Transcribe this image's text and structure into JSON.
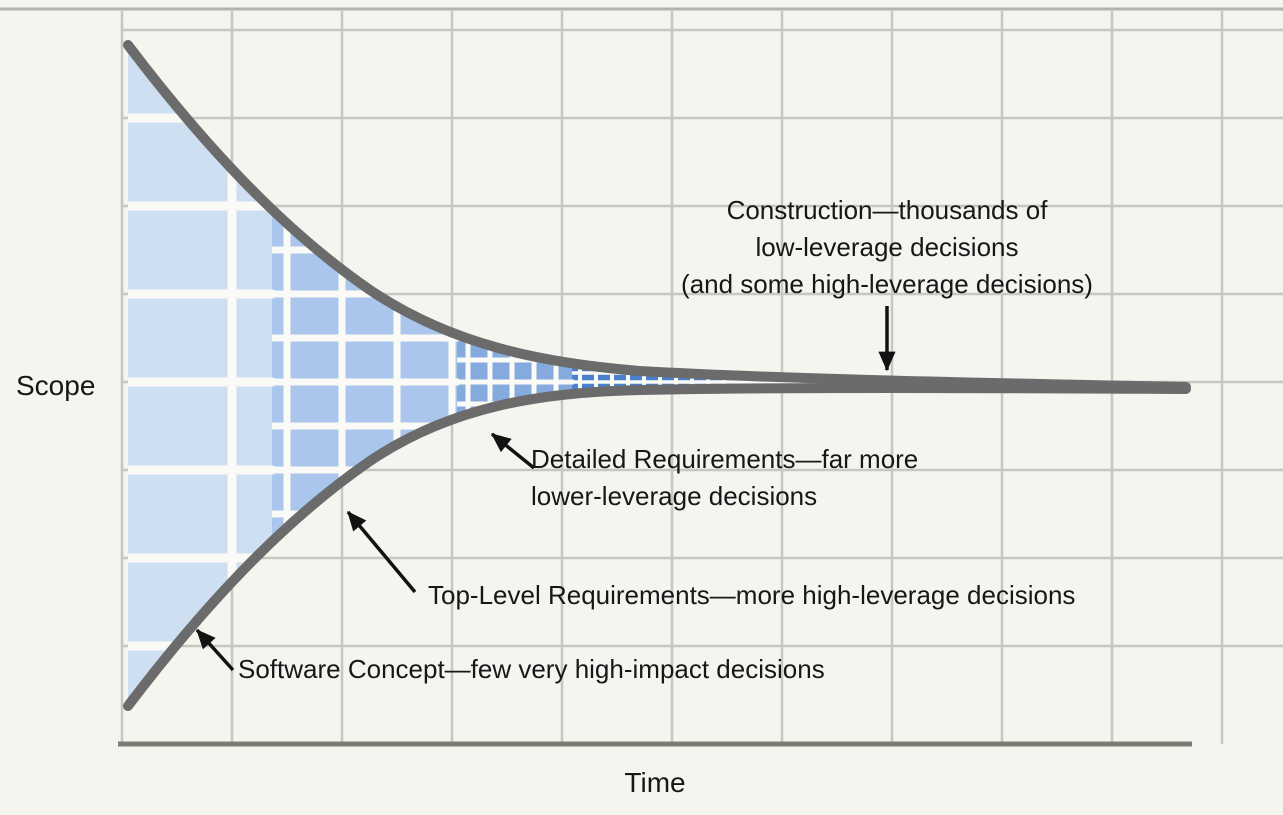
{
  "diagram": {
    "title_implied": "",
    "axes": {
      "y_label": "Scope",
      "x_label": "Time"
    },
    "annotations": {
      "construction": {
        "lines": [
          "Construction—thousands of",
          "low-leverage decisions",
          "(and some high-leverage decisions)"
        ]
      },
      "detailed_requirements": {
        "lines": [
          "Detailed Requirements—far more",
          "lower-leverage decisions"
        ]
      },
      "top_level_requirements": {
        "label": "Top-Level Requirements—more high-leverage decisions"
      },
      "software_concept": {
        "label": "Software Concept—few very high-impact decisions"
      }
    },
    "colors": {
      "page_background": "#f6f4ef",
      "grid_line": "#c7c6c0",
      "axis_line": "#7d7c75",
      "funnel_outline": "#6b6b6b",
      "funnel_fill_coarse": "#cfdff2",
      "funnel_fill_medium": "#aac6ec",
      "funnel_fill_fine": "#84aade",
      "funnel_fill_dashes": "#4a80cc",
      "inner_grid_white": "#fafaf6",
      "arrow": "#121212",
      "text": "#17171a"
    }
  }
}
